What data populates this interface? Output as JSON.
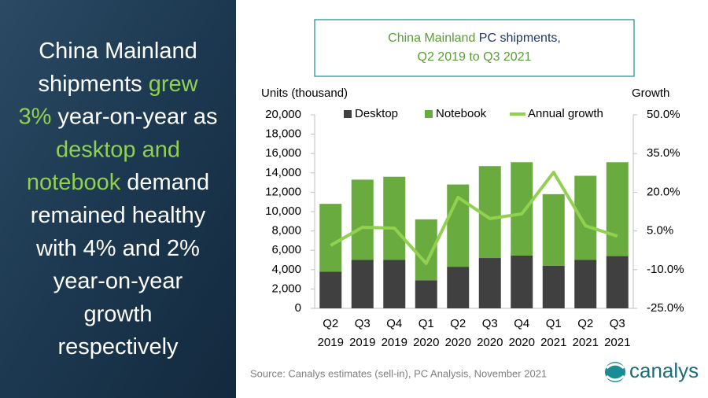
{
  "left_panel": {
    "lines": [
      [
        {
          "text": "China Mainland",
          "highlight": false
        }
      ],
      [
        {
          "text": "shipments ",
          "highlight": false
        },
        {
          "text": "grew",
          "highlight": true
        }
      ],
      [
        {
          "text": "3%",
          "highlight": true
        },
        {
          "text": " year-on-year as",
          "highlight": false
        }
      ],
      [
        {
          "text": "desktop and",
          "highlight": true
        }
      ],
      [
        {
          "text": "notebook",
          "highlight": true
        },
        {
          "text": " demand",
          "highlight": false
        }
      ],
      [
        {
          "text": "remained healthy",
          "highlight": false
        }
      ],
      [
        {
          "text": "with 4% and 2%",
          "highlight": false
        }
      ],
      [
        {
          "text": "year-on-year",
          "highlight": false
        }
      ],
      [
        {
          "text": "growth",
          "highlight": false
        }
      ],
      [
        {
          "text": "respectively",
          "highlight": false
        }
      ]
    ],
    "highlight_color": "#92d050"
  },
  "chart_data": {
    "type": "bar",
    "stacked": true,
    "title_lines": [
      [
        {
          "text": "China Mainland",
          "highlight": true
        },
        {
          "text": " PC shipments,",
          "highlight": false
        }
      ],
      [
        {
          "text": "Q2 2019 to Q3 2021",
          "highlight": true
        }
      ]
    ],
    "title_colors": {
      "highlight": "#5b9c3a",
      "plain": "#1f3864"
    },
    "y_label": "Units (thousand)",
    "y2_label": "Growth",
    "categories": [
      [
        "Q2",
        "2019"
      ],
      [
        "Q3",
        "2019"
      ],
      [
        "Q4",
        "2019"
      ],
      [
        "Q1",
        "2020"
      ],
      [
        "Q2",
        "2020"
      ],
      [
        "Q3",
        "2020"
      ],
      [
        "Q4",
        "2020"
      ],
      [
        "Q1",
        "2021"
      ],
      [
        "Q2",
        "2021"
      ],
      [
        "Q3",
        "2021"
      ]
    ],
    "series": [
      {
        "name": "Desktop",
        "type": "bar",
        "color": "#404040",
        "values": [
          3800,
          5000,
          5000,
          2900,
          4300,
          5200,
          5450,
          4400,
          5000,
          5400
        ]
      },
      {
        "name": "Notebook",
        "type": "bar",
        "color": "#6aab3f",
        "values": [
          7000,
          8300,
          8600,
          6300,
          8500,
          9500,
          9650,
          7400,
          8700,
          9700
        ]
      },
      {
        "name": "Annual growth",
        "type": "line",
        "axis": "y2",
        "color": "#92d050",
        "values": [
          -0.6,
          6.4,
          6.1,
          -7.6,
          18,
          9.8,
          11.6,
          27.7,
          7,
          3
        ]
      }
    ],
    "ylim": [
      0,
      20000
    ],
    "yticks": [
      0,
      {
        "value": 2000,
        "label": "2,000"
      },
      {
        "value": 4000,
        "label": "4,000"
      },
      {
        "value": 6000,
        "label": "6,000"
      },
      {
        "value": 8000,
        "label": "8,000"
      },
      {
        "value": 10000,
        "label": "10,000"
      },
      {
        "value": 12000,
        "label": "12,000"
      },
      {
        "value": 14000,
        "label": "14,000"
      },
      {
        "value": 16000,
        "label": "16,000"
      },
      {
        "value": 18000,
        "label": "18,000"
      },
      {
        "value": 20000,
        "label": "20,000"
      }
    ],
    "y2lim": [
      -25,
      50
    ],
    "y2ticks": [
      {
        "value": -25,
        "label": "-25.0%"
      },
      {
        "value": -10,
        "label": "-10.0%"
      },
      {
        "value": 5,
        "label": "5.0%"
      },
      {
        "value": 20,
        "label": "20.0%"
      },
      {
        "value": 35,
        "label": "35.0%"
      },
      {
        "value": 50,
        "label": "50.0%"
      }
    ],
    "grid": false,
    "legend": "top",
    "source": "Source:  Canalys estimates (sell-in), PC Analysis, November 2021",
    "logo": "canalys"
  }
}
